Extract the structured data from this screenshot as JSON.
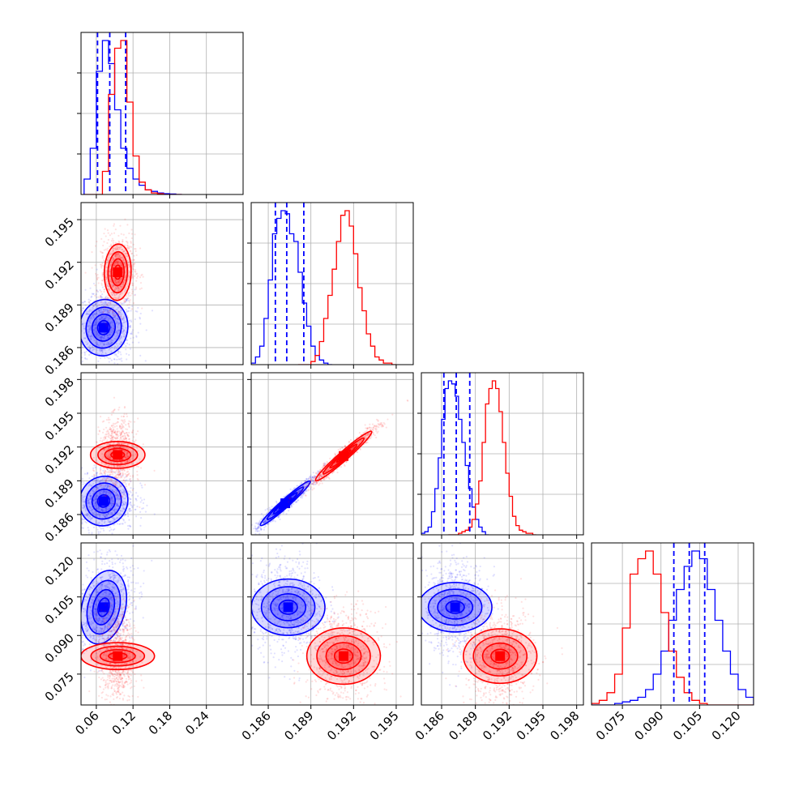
{
  "chart_data": {
    "type": "corner",
    "n_params": 4,
    "grid": true,
    "colors": {
      "series_a": "#0000ff",
      "series_b": "#ff0000"
    },
    "series": [
      {
        "color": "#0000ff",
        "param_modes": [
          0.075,
          0.1875,
          0.1872,
          0.101
        ],
        "quantile_lines": [
          [
            0.062,
            0.082,
            0.108
          ],
          [
            0.1865,
            0.1873,
            0.1885
          ],
          [
            0.1862,
            0.1873,
            0.1885
          ],
          [
            0.095,
            0.101,
            0.107
          ]
        ],
        "hist_1d": [
          {
            "bins": [
              0.04,
              0.05,
              0.06,
              0.07,
              0.08,
              0.09,
              0.1,
              0.11,
              0.12,
              0.13,
              0.14,
              0.15,
              0.16,
              0.17,
              0.18,
              0.19,
              0.2
            ],
            "counts": [
              0.1,
              0.3,
              0.8,
              1.0,
              0.85,
              0.55,
              0.3,
              0.17,
              0.1,
              0.06,
              0.03,
              0.02,
              0.01,
              0.005,
              0.003,
              0.0
            ]
          },
          {
            "bins": [
              0.1848,
              0.1851,
              0.1854,
              0.1857,
              0.186,
              0.1863,
              0.1866,
              0.1869,
              0.1872,
              0.1875,
              0.1878,
              0.1881,
              0.1884,
              0.1887,
              0.189,
              0.1893,
              0.1896,
              0.1899,
              0.1902,
              0.1905
            ],
            "counts": [
              0.01,
              0.05,
              0.12,
              0.3,
              0.55,
              0.85,
              0.95,
              1.0,
              0.98,
              0.85,
              0.8,
              0.6,
              0.4,
              0.25,
              0.12,
              0.06,
              0.03,
              0.01,
              0.0
            ]
          },
          {
            "bins": [
              0.1842,
              0.1845,
              0.1848,
              0.1851,
              0.1854,
              0.1857,
              0.186,
              0.1863,
              0.1866,
              0.1869,
              0.1872,
              0.1875,
              0.1878,
              0.1881,
              0.1884,
              0.1887,
              0.189,
              0.1893,
              0.1896,
              0.1899,
              0.1902
            ],
            "counts": [
              0.01,
              0.02,
              0.05,
              0.15,
              0.3,
              0.5,
              0.75,
              0.95,
              1.0,
              0.98,
              0.9,
              0.75,
              0.6,
              0.45,
              0.3,
              0.18,
              0.1,
              0.05,
              0.02,
              0.0
            ]
          },
          {
            "bins": [
              0.063,
              0.066,
              0.069,
              0.072,
              0.075,
              0.078,
              0.081,
              0.084,
              0.087,
              0.09,
              0.093,
              0.096,
              0.099,
              0.102,
              0.105,
              0.108,
              0.111,
              0.114,
              0.117,
              0.12,
              0.123,
              0.126
            ],
            "counts": [
              0.0,
              0.0,
              0.0,
              0.01,
              0.02,
              0.03,
              0.05,
              0.1,
              0.2,
              0.35,
              0.55,
              0.75,
              0.9,
              1.0,
              0.95,
              0.75,
              0.55,
              0.35,
              0.2,
              0.1,
              0.05
            ]
          }
        ]
      },
      {
        "color": "#ff0000",
        "param_modes": [
          0.095,
          0.1913,
          0.1912,
          0.082
        ],
        "hist_1d": [
          {
            "bins": [
              0.04,
              0.05,
              0.06,
              0.07,
              0.08,
              0.09,
              0.1,
              0.11,
              0.12,
              0.13,
              0.14,
              0.15,
              0.16,
              0.17,
              0.18,
              0.19,
              0.2
            ],
            "counts": [
              0.0,
              0.0,
              0.0,
              0.15,
              0.65,
              0.95,
              1.0,
              0.6,
              0.25,
              0.08,
              0.03,
              0.01,
              0.005,
              0.0,
              0.0,
              0.0
            ]
          },
          {
            "bins": [
              0.1881,
              0.1884,
              0.1887,
              0.189,
              0.1893,
              0.1896,
              0.1899,
              0.1902,
              0.1905,
              0.1908,
              0.1911,
              0.1914,
              0.1917,
              0.192,
              0.1923,
              0.1926,
              0.1929,
              0.1932,
              0.1935,
              0.1938,
              0.1941,
              0.1944,
              0.1947,
              0.195
            ],
            "counts": [
              0.0,
              0.0,
              0.0,
              0.02,
              0.06,
              0.15,
              0.3,
              0.45,
              0.62,
              0.8,
              0.97,
              1.0,
              0.9,
              0.72,
              0.5,
              0.35,
              0.2,
              0.12,
              0.05,
              0.03,
              0.01,
              0.01,
              0.0
            ]
          },
          {
            "bins": [
              0.1866,
              0.1869,
              0.1872,
              0.1875,
              0.1878,
              0.1881,
              0.1884,
              0.1887,
              0.189,
              0.1893,
              0.1896,
              0.1899,
              0.1902,
              0.1905,
              0.1908,
              0.1911,
              0.1914,
              0.1917,
              0.192,
              0.1923,
              0.1926,
              0.1929,
              0.1932,
              0.1935,
              0.1938,
              0.1941,
              0.1944
            ],
            "counts": [
              0.0,
              0.0,
              0.0,
              0.01,
              0.02,
              0.03,
              0.05,
              0.1,
              0.2,
              0.35,
              0.6,
              0.85,
              0.95,
              1.0,
              0.95,
              0.8,
              0.6,
              0.4,
              0.25,
              0.12,
              0.06,
              0.03,
              0.02,
              0.01,
              0.01,
              0.0
            ]
          },
          {
            "bins": [
              0.063,
              0.066,
              0.069,
              0.072,
              0.075,
              0.078,
              0.081,
              0.084,
              0.087,
              0.09,
              0.093,
              0.096,
              0.099,
              0.102,
              0.105,
              0.108,
              0.111,
              0.114,
              0.117,
              0.12,
              0.123,
              0.126
            ],
            "counts": [
              0.01,
              0.03,
              0.08,
              0.2,
              0.5,
              0.85,
              0.95,
              1.0,
              0.85,
              0.6,
              0.35,
              0.18,
              0.08,
              0.03,
              0.01,
              0.0,
              0.0,
              0.0,
              0.0,
              0.0,
              0.0
            ]
          }
        ]
      }
    ],
    "covariance_2d": [
      {
        "row": 1,
        "col": 0,
        "series_a": {
          "center": [
            0.072,
            0.1874
          ],
          "sd": [
            0.018,
            0.0009
          ],
          "rho": 0.05
        },
        "series_b": {
          "center": [
            0.095,
            0.1913
          ],
          "sd": [
            0.01,
            0.0009
          ],
          "rho": 0.05
        }
      },
      {
        "row": 2,
        "col": 0,
        "series_a": {
          "center": [
            0.072,
            0.1872
          ],
          "sd": [
            0.018,
            0.001
          ],
          "rho": 0.05
        },
        "series_b": {
          "center": [
            0.095,
            0.1913
          ],
          "sd": [
            0.01,
            0.0011
          ],
          "rho": 0.0
        }
      },
      {
        "row": 2,
        "col": 1,
        "series_a": {
          "center": [
            0.1872,
            0.187
          ],
          "sd": [
            0.0008,
            0.0009
          ],
          "rho": 0.97
        },
        "series_b": {
          "center": [
            0.1913,
            0.1912
          ],
          "sd": [
            0.0009,
            0.001
          ],
          "rho": 0.97
        }
      },
      {
        "row": 3,
        "col": 0,
        "series_a": {
          "center": [
            0.072,
            0.101
          ],
          "sd": [
            0.017,
            0.0065
          ],
          "rho": 0.25
        },
        "series_b": {
          "center": [
            0.095,
            0.082
          ],
          "sd": [
            0.01,
            0.0065
          ],
          "rho": 0.0
        }
      },
      {
        "row": 3,
        "col": 1,
        "series_a": {
          "center": [
            0.1874,
            0.101
          ],
          "sd": [
            0.0009,
            0.0065
          ],
          "rho": 0.0
        },
        "series_b": {
          "center": [
            0.1913,
            0.082
          ],
          "sd": [
            0.0009,
            0.0065
          ],
          "rho": 0.0
        }
      },
      {
        "row": 3,
        "col": 2,
        "series_a": {
          "center": [
            0.1872,
            0.101
          ],
          "sd": [
            0.001,
            0.0065
          ],
          "rho": 0.0
        },
        "series_b": {
          "center": [
            0.1912,
            0.082
          ],
          "sd": [
            0.0011,
            0.0065
          ],
          "rho": 0.0
        }
      }
    ],
    "ranges": [
      [
        0.035,
        0.3
      ],
      [
        0.1848,
        0.1962
      ],
      [
        0.1842,
        0.1986
      ],
      [
        0.063,
        0.126
      ]
    ],
    "tick_values": [
      [
        0.06,
        0.12,
        0.18,
        0.24
      ],
      [
        0.186,
        0.189,
        0.192,
        0.195
      ],
      [
        0.186,
        0.189,
        0.192,
        0.195,
        0.198
      ],
      [
        0.075,
        0.09,
        0.105,
        0.12
      ]
    ],
    "tick_labels": [
      [
        "0.06",
        "0.12",
        "0.18",
        "0.24"
      ],
      [
        "0.186",
        "0.189",
        "0.192",
        "0.195"
      ],
      [
        "0.186",
        "0.189",
        "0.192",
        "0.195",
        "0.198"
      ],
      [
        "0.075",
        "0.090",
        "0.105",
        "0.120"
      ]
    ],
    "diag_ymax_ticks": 3,
    "title": "",
    "xlabel": "",
    "ylabel": ""
  }
}
